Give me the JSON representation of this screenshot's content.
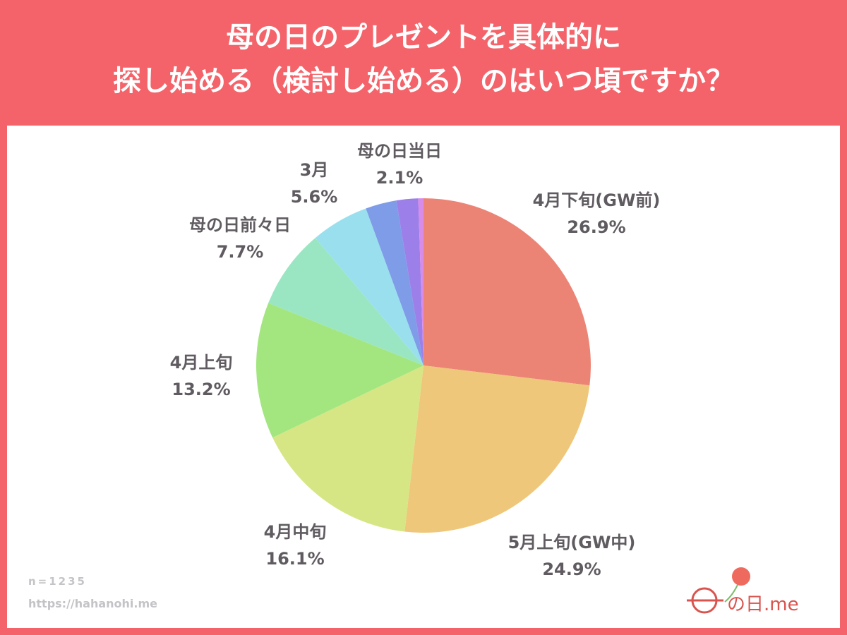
{
  "title_line1": "母の日のプレゼントを具体的に",
  "title_line2": "探し始める（検討し始める）のはいつ頃ですか？",
  "sample_size": "n=1235",
  "source_url": "https://hahanohi.me",
  "logo_text": "母の日.me",
  "colors": {
    "header": "#F4636A"
  },
  "chart_data": {
    "type": "pie",
    "title": "母の日のプレゼントを具体的に探し始める（検討し始める）のはいつ頃ですか？",
    "start": "top, clockwise",
    "slices": [
      {
        "label": "4月下旬(GW前)",
        "value": 26.9,
        "display": "26.9%",
        "color": "#EC8476"
      },
      {
        "label": "5月上旬(GW中)",
        "value": 24.9,
        "display": "24.9%",
        "color": "#EEC77A"
      },
      {
        "label": "4月中旬",
        "value": 16.1,
        "display": "16.1%",
        "color": "#D6E685"
      },
      {
        "label": "4月上旬",
        "value": 13.2,
        "display": "13.2%",
        "color": "#A3E67F"
      },
      {
        "label": "母の日前々日",
        "value": 7.7,
        "display": "7.7%",
        "color": "#9AE6C2"
      },
      {
        "label": "3月",
        "value": 5.6,
        "display": "5.6%",
        "color": "#9ADFEE"
      },
      {
        "label": "",
        "value": 3.0,
        "display": "",
        "color": "#7E9CE8"
      },
      {
        "label": "母の日当日",
        "value": 2.1,
        "display": "2.1%",
        "color": "#9C7FE8"
      },
      {
        "label": "",
        "value": 0.5,
        "display": "",
        "color": "#D98BE8"
      }
    ]
  }
}
